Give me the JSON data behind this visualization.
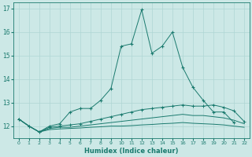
{
  "xlabel": "Humidex (Indice chaleur)",
  "x": [
    0,
    1,
    2,
    3,
    4,
    5,
    6,
    7,
    8,
    9,
    10,
    11,
    12,
    13,
    14,
    15,
    16,
    17,
    18,
    19,
    20,
    21,
    22
  ],
  "line1": [
    12.3,
    12.0,
    11.75,
    12.0,
    12.1,
    12.6,
    12.75,
    12.75,
    13.1,
    13.6,
    15.4,
    15.5,
    16.95,
    15.1,
    15.4,
    16.0,
    14.5,
    13.65,
    13.1,
    12.6,
    12.6,
    12.15,
    null
  ],
  "line2": [
    12.3,
    12.0,
    11.75,
    11.95,
    12.0,
    12.05,
    12.1,
    12.2,
    12.3,
    12.4,
    12.5,
    12.6,
    12.7,
    12.75,
    12.8,
    12.85,
    12.9,
    12.85,
    12.85,
    12.9,
    12.8,
    12.65,
    12.2
  ],
  "line3": [
    12.3,
    12.0,
    11.75,
    11.9,
    11.95,
    11.95,
    12.0,
    12.05,
    12.1,
    12.15,
    12.2,
    12.25,
    12.3,
    12.35,
    12.4,
    12.45,
    12.5,
    12.45,
    12.45,
    12.4,
    12.35,
    12.25,
    12.1
  ],
  "line4": [
    12.3,
    12.0,
    11.75,
    11.85,
    11.88,
    11.9,
    11.92,
    11.95,
    11.97,
    12.0,
    12.0,
    12.02,
    12.05,
    12.07,
    12.1,
    12.12,
    12.15,
    12.12,
    12.1,
    12.08,
    12.05,
    12.0,
    11.95
  ],
  "line_color": "#1a7a6e",
  "bg_color": "#cce8e6",
  "grid_color": "#afd6d4",
  "ylim": [
    11.5,
    17.25
  ],
  "xlim": [
    -0.5,
    22.5
  ],
  "yticks": [
    12,
    13,
    14,
    15,
    16,
    17
  ],
  "xticks": [
    0,
    1,
    2,
    3,
    4,
    5,
    6,
    7,
    8,
    9,
    10,
    11,
    12,
    13,
    14,
    15,
    16,
    17,
    18,
    19,
    20,
    21,
    22
  ]
}
